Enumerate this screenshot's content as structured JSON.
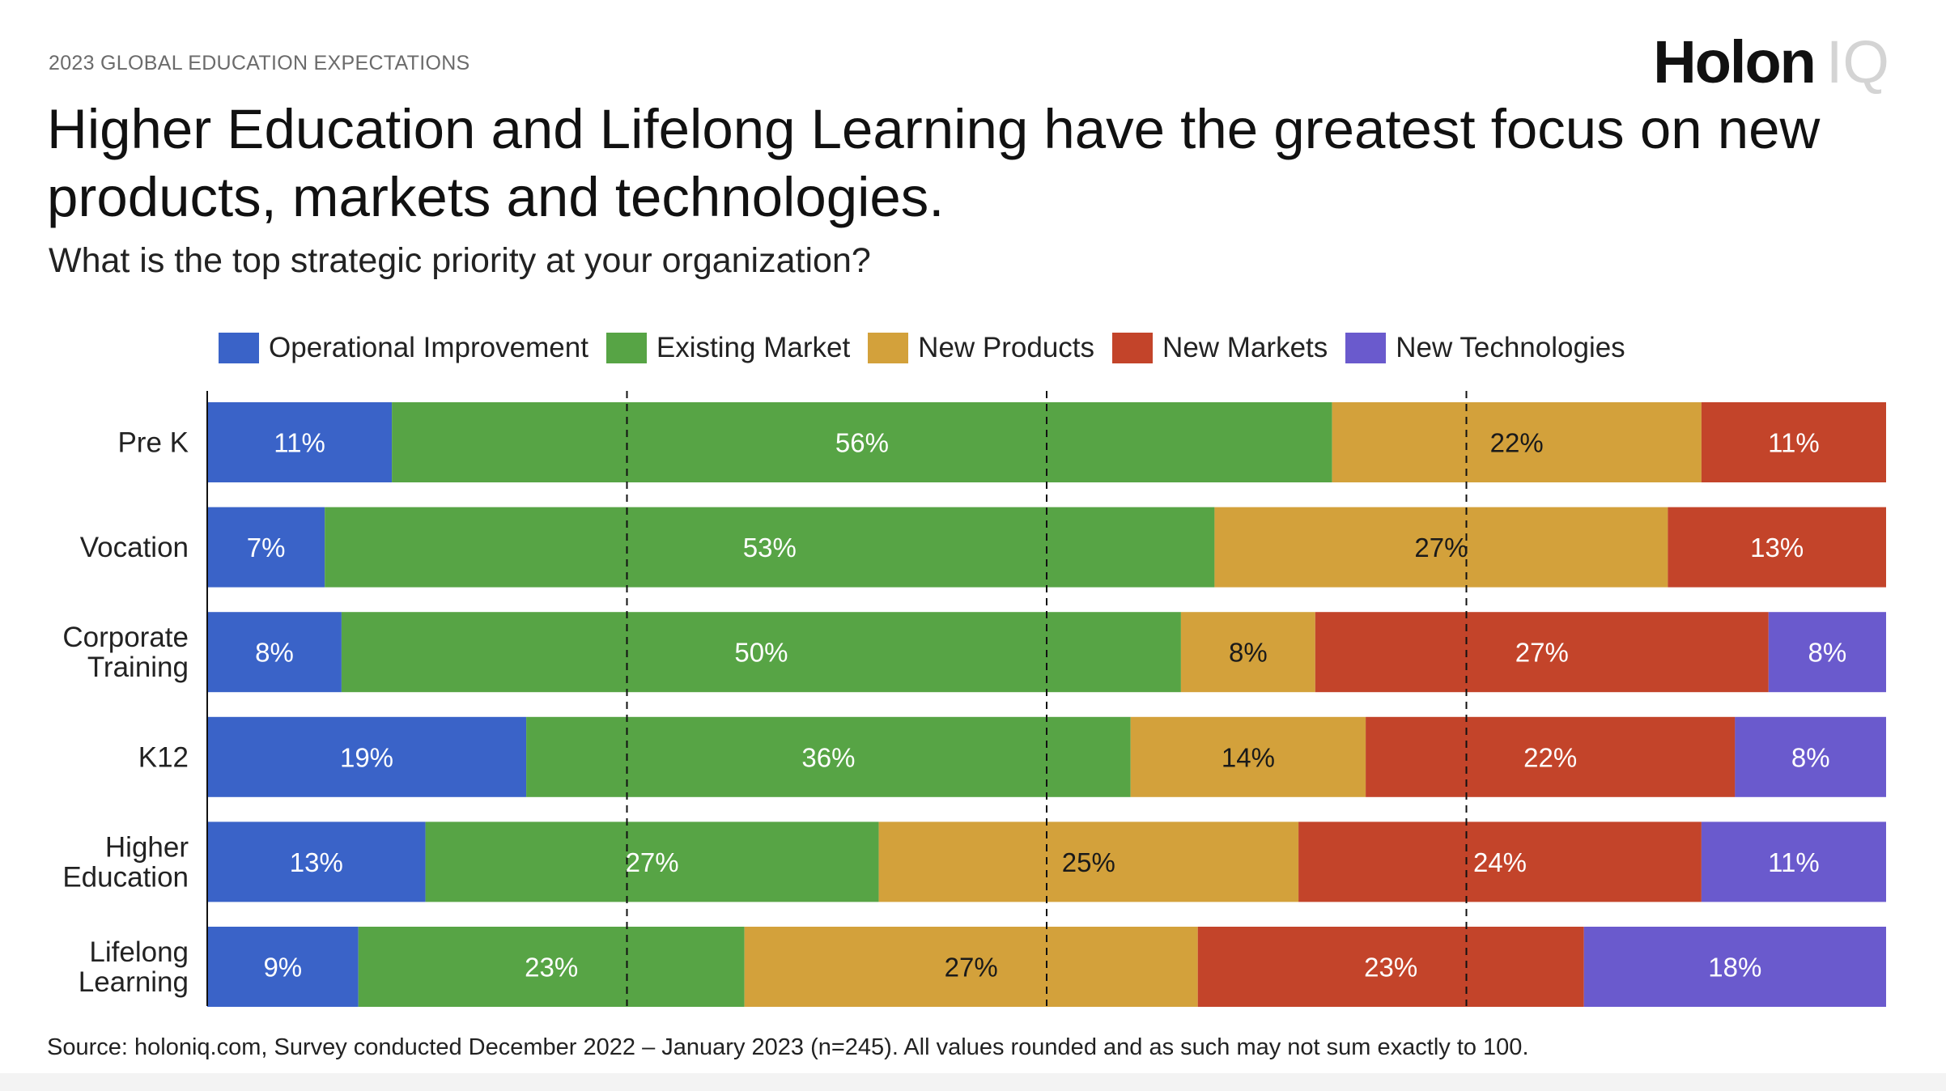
{
  "header": {
    "eyebrow": "2023 GLOBAL EDUCATION EXPECTATIONS",
    "logo_main": "Holon",
    "logo_suffix": "IQ",
    "title": "Higher Education and Lifelong Learning have the greatest focus on new products, markets and technologies.",
    "subtitle": "What is the top strategic priority at your organization?"
  },
  "footer": {
    "source": "Source: holoniq.com, Survey conducted December 2022 – January 2023 (n=245). All values rounded and as such may not sum exactly to 100."
  },
  "chart_data": {
    "type": "bar",
    "orientation": "horizontal",
    "stacked": true,
    "categories": [
      "Pre K",
      "Vocation",
      "Corporate Training",
      "K12",
      "Higher Education",
      "Lifelong Learning"
    ],
    "category_lines": [
      [
        "Pre K"
      ],
      [
        "Vocation"
      ],
      [
        "Corporate",
        "Training"
      ],
      [
        "K12"
      ],
      [
        "Higher",
        "Education"
      ],
      [
        "Lifelong",
        "Learning"
      ]
    ],
    "series": [
      {
        "name": "Operational Improvement",
        "color": "#3a63c8",
        "label_color": "#ffffff",
        "values": [
          11,
          7,
          8,
          19,
          13,
          9
        ]
      },
      {
        "name": "Existing Market",
        "color": "#57a445",
        "label_color": "#ffffff",
        "values": [
          56,
          53,
          50,
          36,
          27,
          23
        ]
      },
      {
        "name": "New Products",
        "color": "#d3a13b",
        "label_color": "#1a1a1a",
        "values": [
          22,
          27,
          8,
          14,
          25,
          27
        ]
      },
      {
        "name": "New Markets",
        "color": "#c3442a",
        "label_color": "#ffffff",
        "values": [
          11,
          13,
          27,
          22,
          24,
          23
        ]
      },
      {
        "name": "New Technologies",
        "color": "#6a5acd",
        "label_color": "#ffffff",
        "values": [
          0,
          0,
          8,
          8,
          11,
          18
        ]
      }
    ],
    "value_suffix": "%",
    "xlim": [
      0,
      100
    ],
    "gridlines_at": [
      25,
      50,
      75
    ],
    "gridline_style": "dashed",
    "legend_position": "top"
  }
}
